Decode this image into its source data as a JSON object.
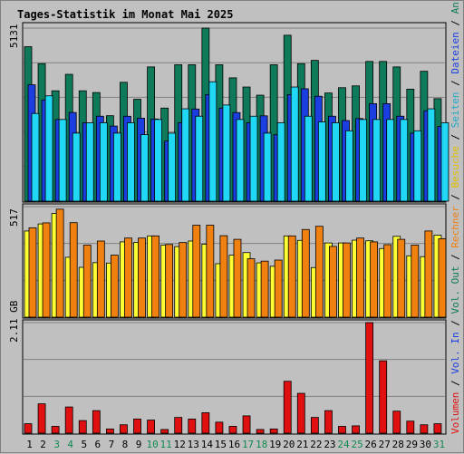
{
  "chart_data": {
    "type": "bar",
    "title": "Tages-Statistik im Monat Mai 2025",
    "categories": [
      "1",
      "2",
      "3",
      "4",
      "5",
      "6",
      "7",
      "8",
      "9",
      "10",
      "11",
      "12",
      "13",
      "14",
      "15",
      "16",
      "17",
      "18",
      "19",
      "20",
      "21",
      "22",
      "23",
      "24",
      "25",
      "26",
      "27",
      "28",
      "29",
      "30",
      "31"
    ],
    "weekend_days": [
      "3",
      "4",
      "10",
      "11",
      "17",
      "18",
      "24",
      "25",
      "31"
    ],
    "panels": [
      {
        "id": "top",
        "ymax_label": "5131",
        "ylim": [
          0,
          5131
        ],
        "series": [
          {
            "name": "Anfragen",
            "color": "#0f7a5a",
            "values": [
              4580,
              4077,
              3272,
              3760,
              3272,
              3220,
              2534,
              3524,
              3021,
              3980,
              2760,
              4045,
              4045,
              5131,
              4045,
              3656,
              3384,
              3142,
              4045,
              4919,
              4077,
              4174,
              3207,
              3364,
              3418,
              4142,
              4142,
              3980,
              3321,
              3851,
              3039
            ]
          },
          {
            "name": "Dateien",
            "color": "#1a3ee0",
            "values": [
              3450,
              3000,
              2422,
              2630,
              2325,
              2519,
              2227,
              2518,
              2460,
              2437,
              1784,
              2325,
              2732,
              3160,
              2761,
              2627,
              2325,
              2530,
              1973,
              3160,
              3332,
              3110,
              2519,
              2390,
              2450,
              2891,
              2891,
              2519,
              2017,
              2680,
              2215
            ]
          },
          {
            "name": "Seiten",
            "color": "#20d8f5",
            "values": [
              2600,
              3123,
              2422,
              2017,
              2325,
              2325,
              2017,
              2325,
              1973,
              2422,
              2017,
              2739,
              2519,
              3540,
              2851,
              2422,
              2519,
              2017,
              2325,
              3384,
              2519,
              2350,
              2325,
              2087,
              2422,
              2422,
              2422,
              2422,
              2087,
              2739,
              2325
            ]
          }
        ]
      },
      {
        "id": "mid",
        "ymax_label": "517",
        "ylim": [
          0,
          517
        ],
        "series": [
          {
            "name": "Besuche",
            "color": "#ffff33",
            "values": [
              403,
              436,
              485,
              280,
              233,
              255,
              253,
              352,
              350,
              380,
              337,
              330,
              356,
              341,
              250,
              290,
              302,
              254,
              238,
              380,
              359,
              232,
              347,
              347,
              360,
              357,
              321,
              378,
              287,
              283,
              383
            ]
          },
          {
            "name": "Rechner",
            "color": "#f08010",
            "values": [
              418,
              441,
              505,
              442,
              337,
              356,
              290,
              370,
              370,
              380,
              340,
              349,
              430,
              430,
              381,
              364,
              273,
              262,
              267,
              380,
              410,
              425,
              331,
              347,
              370,
              352,
              339,
              364,
              337,
              403,
              367
            ]
          }
        ]
      },
      {
        "id": "bottom",
        "ymax_label": "2.11 GB",
        "ylim": [
          0,
          2.11
        ],
        "series": [
          {
            "name": "Volumen",
            "color": "#e01010",
            "values": [
              0.18,
              0.56,
              0.13,
              0.5,
              0.24,
              0.43,
              0.08,
              0.16,
              0.27,
              0.25,
              0.07,
              0.3,
              0.27,
              0.39,
              0.21,
              0.13,
              0.33,
              0.07,
              0.08,
              0.99,
              0.76,
              0.3,
              0.43,
              0.13,
              0.14,
              2.11,
              1.38,
              0.42,
              0.23,
              0.16,
              0.18
            ]
          }
        ]
      }
    ],
    "right_axis_labels": [
      {
        "text": "Anfragen",
        "color": "#0f7a5a"
      },
      {
        "text": "Dateien",
        "color": "#1a3ee0"
      },
      {
        "text": "Seiten",
        "color": "#20a8c8"
      },
      {
        "text": "Besuche",
        "color": "#e0c000"
      },
      {
        "text": "Rechner",
        "color": "#f08010"
      },
      {
        "text": "Vol. Out",
        "color": "#0f7a5a"
      },
      {
        "text": "Vol. In",
        "color": "#1a3ee0"
      },
      {
        "text": "Volumen",
        "color": "#e01010"
      }
    ],
    "colors": {
      "title": "#1a3ee0",
      "plot_bg": "#c0c0c0",
      "gridline": "#808080",
      "day_weekday": "#000000",
      "day_weekend": "#0f8a50"
    }
  }
}
